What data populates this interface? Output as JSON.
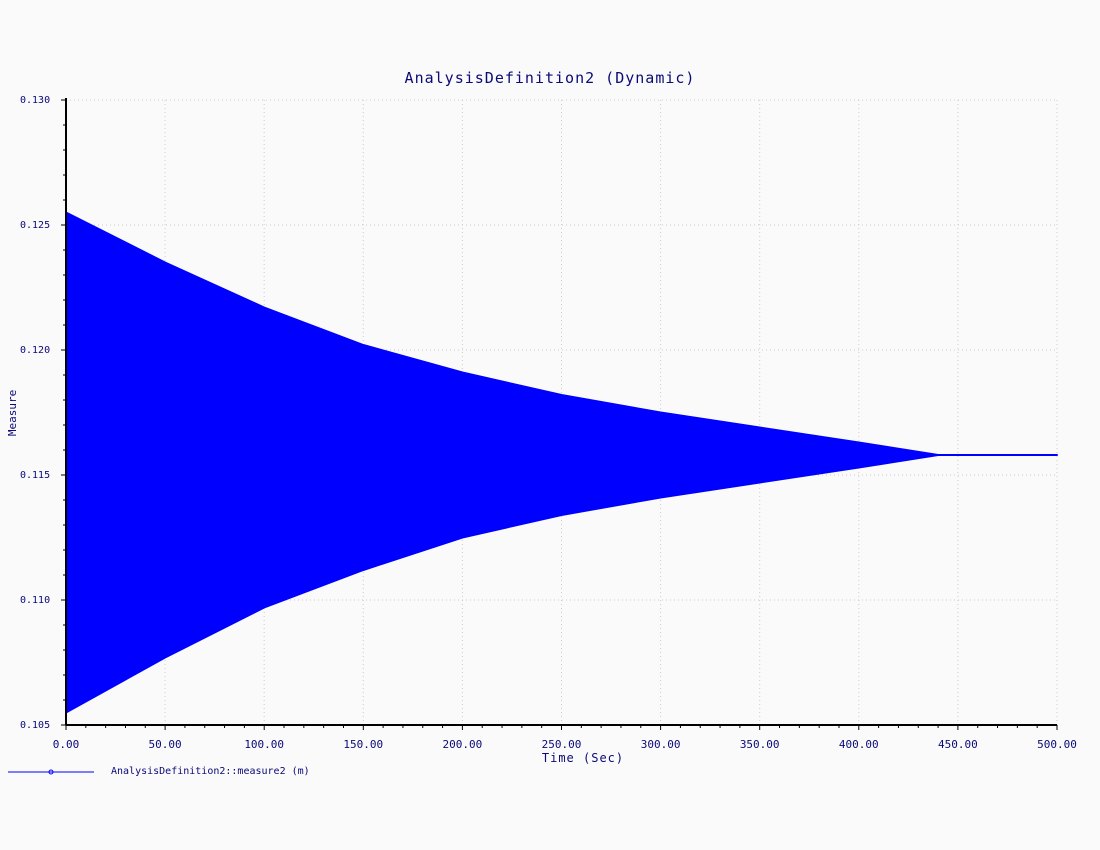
{
  "chart_data": {
    "type": "area",
    "title": "AnalysisDefinition2 (Dynamic)",
    "xlabel": "Time (Sec)",
    "ylabel": "Measure",
    "xlim": [
      0,
      500
    ],
    "ylim": [
      0.105,
      0.13
    ],
    "x_ticks": [
      "0.00",
      "50.00",
      "100.00",
      "150.00",
      "200.00",
      "250.00",
      "300.00",
      "350.00",
      "400.00",
      "450.00",
      "500.00"
    ],
    "y_ticks": [
      "0.105",
      "0.110",
      "0.115",
      "0.120",
      "0.125",
      "0.130"
    ],
    "grid": true,
    "legend": "bottom-left",
    "colors": {
      "series": "#0000ff",
      "text": "#0a0a78",
      "axis": "#000000",
      "grid": "#cccccc",
      "background": "#fafafa"
    },
    "series": [
      {
        "name": "AnalysisDefinition2::measure2 (m)",
        "x": [
          0,
          50,
          100,
          150,
          200,
          250,
          300,
          350,
          400,
          440,
          450,
          500
        ],
        "upper": [
          0.1255,
          0.1235,
          0.1217,
          0.1202,
          0.1191,
          0.1182,
          0.1175,
          0.1169,
          0.1163,
          0.1158,
          0.1158,
          0.1158
        ],
        "lower": [
          0.1055,
          0.1077,
          0.1097,
          0.1112,
          0.1125,
          0.1134,
          0.1141,
          0.1147,
          0.1153,
          0.1158,
          0.1158,
          0.1158
        ]
      }
    ]
  }
}
